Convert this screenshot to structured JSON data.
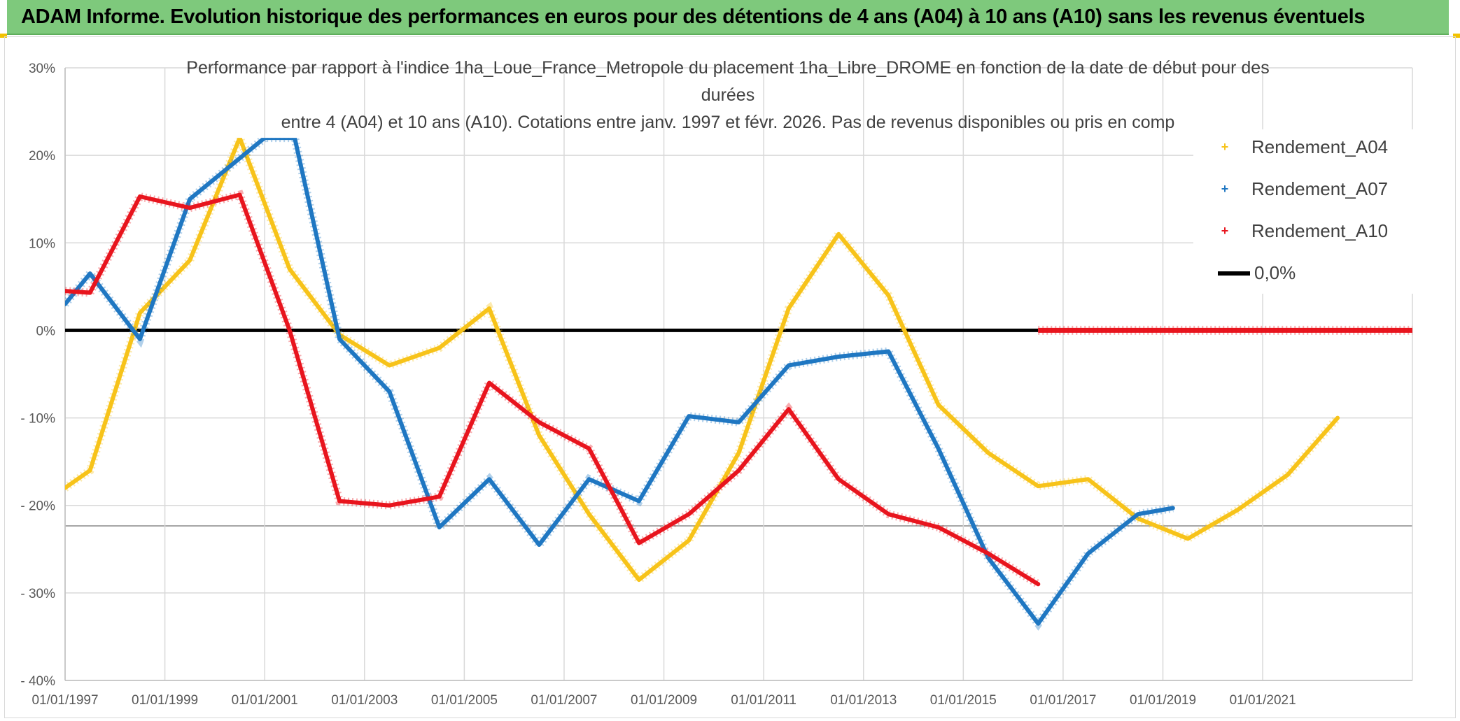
{
  "header": {
    "title": "ADAM Informe. Evolution historique des performances en euros pour des détentions de 4 ans (A04) à 10 ans (A10) sans les revenus éventuels",
    "background": "#7ec97c"
  },
  "chart_data": {
    "type": "line",
    "title_lines": [
      "Performance par rapport à l'indice 1ha_Loue_France_Metropole  du placement 1ha_Libre_DROME en fonction de la date de début pour des",
      "durées",
      "entre 4 (A04) et 10 ans (A10). Cotations entre janv. 1997 et févr. 2026. Pas de revenus disponibles ou pris en comp"
    ],
    "xlabel": "",
    "ylabel": "",
    "x_range": [
      1997.0,
      2024.0
    ],
    "ylim": [
      -40,
      30
    ],
    "y_ticks": [
      {
        "value": 30,
        "label": "30%"
      },
      {
        "value": 20,
        "label": "20%"
      },
      {
        "value": 10,
        "label": "10%"
      },
      {
        "value": 0,
        "label": "0%"
      },
      {
        "value": -10,
        "label": "- 10%"
      },
      {
        "value": -20,
        "label": "- 20%"
      },
      {
        "value": -30,
        "label": "- 30%"
      },
      {
        "value": -40,
        "label": "- 40%"
      }
    ],
    "x_ticks": [
      {
        "value": 1997,
        "label": "01/01/1997"
      },
      {
        "value": 1999,
        "label": "01/01/1999"
      },
      {
        "value": 2001,
        "label": "01/01/2001"
      },
      {
        "value": 2003,
        "label": "01/01/2003"
      },
      {
        "value": 2005,
        "label": "01/01/2005"
      },
      {
        "value": 2007,
        "label": "01/01/2007"
      },
      {
        "value": 2009,
        "label": "01/01/2009"
      },
      {
        "value": 2011,
        "label": "01/01/2011"
      },
      {
        "value": 2013,
        "label": "01/01/2013"
      },
      {
        "value": 2015,
        "label": "01/01/2015"
      },
      {
        "value": 2017,
        "label": "01/01/2017"
      },
      {
        "value": 2019,
        "label": "01/01/2019"
      },
      {
        "value": 2021,
        "label": "01/01/2021"
      }
    ],
    "series": [
      {
        "name": "Rendement_A04",
        "color": "#f7c31a",
        "points": [
          [
            1997.0,
            -18
          ],
          [
            1997.5,
            -16
          ],
          [
            1998.5,
            2
          ],
          [
            1999.5,
            8
          ],
          [
            2000.5,
            22
          ],
          [
            2001.5,
            7
          ],
          [
            2002.5,
            -0.5
          ],
          [
            2003.5,
            -4
          ],
          [
            2004.5,
            -2
          ],
          [
            2005.5,
            2.5
          ],
          [
            2006.5,
            -12
          ],
          [
            2007.5,
            -21
          ],
          [
            2008.5,
            -28.5
          ],
          [
            2009.5,
            -24
          ],
          [
            2010.5,
            -14
          ],
          [
            2011.5,
            2.5
          ],
          [
            2012.5,
            11
          ],
          [
            2013.5,
            4
          ],
          [
            2014.5,
            -8.5
          ],
          [
            2015.5,
            -14
          ],
          [
            2016.5,
            -17.8
          ],
          [
            2017.5,
            -17
          ],
          [
            2018.5,
            -21.5
          ],
          [
            2019.5,
            -23.8
          ],
          [
            2020.5,
            -20.5
          ],
          [
            2021.5,
            -16.5
          ],
          [
            2022.5,
            -10
          ]
        ]
      },
      {
        "name": "Rendement_A07",
        "color": "#1f77c2",
        "points": [
          [
            1997.0,
            3
          ],
          [
            1997.5,
            6.5
          ],
          [
            1998.5,
            -1
          ],
          [
            1999.5,
            15
          ],
          [
            2001.0,
            22
          ],
          [
            2001.6,
            22
          ],
          [
            2002.5,
            -1
          ],
          [
            2003.5,
            -7
          ],
          [
            2004.5,
            -22.5
          ],
          [
            2005.5,
            -17
          ],
          [
            2006.5,
            -24.5
          ],
          [
            2007.5,
            -17
          ],
          [
            2008.5,
            -19.5
          ],
          [
            2009.5,
            -9.8
          ],
          [
            2010.5,
            -10.5
          ],
          [
            2011.5,
            -4
          ],
          [
            2012.5,
            -3
          ],
          [
            2013.5,
            -2.4
          ],
          [
            2014.5,
            -13.5
          ],
          [
            2015.5,
            -26
          ],
          [
            2016.5,
            -33.5
          ],
          [
            2017.5,
            -25.5
          ],
          [
            2018.5,
            -21
          ],
          [
            2019.2,
            -20.3
          ]
        ]
      },
      {
        "name": "Rendement_A10",
        "color": "#e8151e",
        "points": [
          [
            1997.0,
            4.5
          ],
          [
            1997.5,
            4.3
          ],
          [
            1998.5,
            15.3
          ],
          [
            1999.5,
            14
          ],
          [
            2000.5,
            15.5
          ],
          [
            2001.5,
            0
          ],
          [
            2002.5,
            -19.5
          ],
          [
            2003.5,
            -20
          ],
          [
            2004.5,
            -19
          ],
          [
            2005.5,
            -6
          ],
          [
            2006.5,
            -10.5
          ],
          [
            2007.5,
            -13.5
          ],
          [
            2008.5,
            -24.3
          ],
          [
            2009.5,
            -21
          ],
          [
            2010.5,
            -16
          ],
          [
            2011.5,
            -9
          ],
          [
            2012.5,
            -17
          ],
          [
            2013.5,
            -21
          ],
          [
            2014.5,
            -22.5
          ],
          [
            2015.5,
            -25.5
          ],
          [
            2016.5,
            -29
          ]
        ],
        "zero_segment": [
          2016.5,
          2024.0
        ]
      }
    ],
    "reference_line": {
      "name": "0,0%",
      "value": 0,
      "color": "#000000",
      "x_range": [
        1997.0,
        2016.5
      ]
    },
    "legend": [
      {
        "name": "Rendement_A04",
        "marker": "+",
        "color": "#f7c31a"
      },
      {
        "name": "Rendement_A07",
        "marker": "+",
        "color": "#1f77c2"
      },
      {
        "name": "Rendement_A10",
        "marker": "+",
        "color": "#e8151e"
      },
      {
        "name": "0,0%",
        "marker": "line",
        "color": "#000000"
      }
    ],
    "legend_position": "top-right",
    "grid": true
  }
}
